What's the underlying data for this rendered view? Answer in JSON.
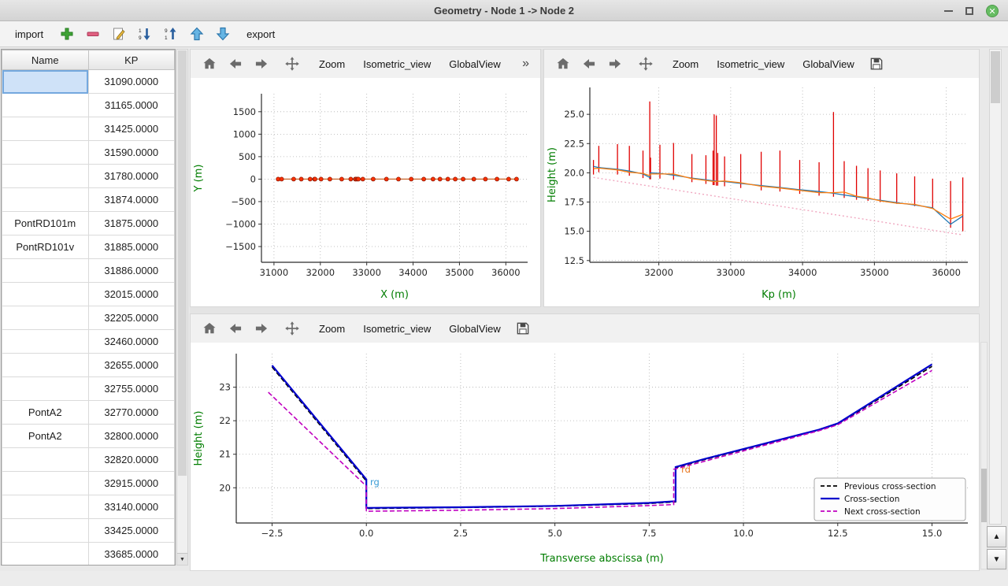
{
  "window": {
    "title": "Geometry - Node 1 -> Node 2"
  },
  "toolbar": {
    "import_label": "import",
    "export_label": "export",
    "icons": [
      "add",
      "remove",
      "edit",
      "sort-descending",
      "sort-ascending",
      "move-up",
      "move-down"
    ]
  },
  "table": {
    "headers": [
      "Name",
      "KP"
    ],
    "selected_row": 0,
    "selected_column": "name",
    "rows": [
      {
        "name": "",
        "kp": "31090.0000"
      },
      {
        "name": "",
        "kp": "31165.0000"
      },
      {
        "name": "",
        "kp": "31425.0000"
      },
      {
        "name": "",
        "kp": "31590.0000"
      },
      {
        "name": "",
        "kp": "31780.0000"
      },
      {
        "name": "",
        "kp": "31874.0000"
      },
      {
        "name": "PontRD101m",
        "kp": "31875.0000"
      },
      {
        "name": "PontRD101v",
        "kp": "31885.0000"
      },
      {
        "name": "",
        "kp": "31886.0000"
      },
      {
        "name": "",
        "kp": "32015.0000"
      },
      {
        "name": "",
        "kp": "32205.0000"
      },
      {
        "name": "",
        "kp": "32460.0000"
      },
      {
        "name": "",
        "kp": "32655.0000"
      },
      {
        "name": "",
        "kp": "32755.0000"
      },
      {
        "name": "PontA2",
        "kp": "32770.0000"
      },
      {
        "name": "PontA2",
        "kp": "32800.0000"
      },
      {
        "name": "",
        "kp": "32820.0000"
      },
      {
        "name": "",
        "kp": "32915.0000"
      },
      {
        "name": "",
        "kp": "33140.0000"
      },
      {
        "name": "",
        "kp": "33425.0000"
      },
      {
        "name": "",
        "kp": "33685.0000"
      }
    ]
  },
  "plot_toolbar": {
    "zoom": "Zoom",
    "isometric": "Isometric_view",
    "globalview": "GlobalView",
    "more": "»"
  },
  "scrollbars": {
    "up": "▲",
    "down": "▼"
  },
  "colors": {
    "axis_label_green": "#007d00",
    "selection_blue": "#cfe2f8",
    "marker_red": "#e00000",
    "bank_blue": "#1f77b4",
    "bank_orange": "#ff7f0e",
    "cross_section_blue": "#0000cc",
    "next_section_magenta": "#c000c0"
  },
  "chart_data": [
    {
      "id": "plan",
      "type": "scatter",
      "xlabel": "X (m)",
      "ylabel": "Y (m)",
      "xlim": [
        30730,
        36470
      ],
      "ylim": [
        -1850,
        1900
      ],
      "xticks": [
        31000,
        32000,
        33000,
        34000,
        35000,
        36000
      ],
      "xtick_labels": [
        "31000",
        "32000",
        "33000",
        "34000",
        "35000",
        "36000"
      ],
      "yticks": [
        -1500,
        -1000,
        -500,
        0,
        500,
        1000,
        1500
      ],
      "ytick_labels": [
        "−1500",
        "−1000",
        "−500",
        "0",
        "500",
        "1000",
        "1500"
      ],
      "margins": {
        "l": 90,
        "r": 16,
        "t": 20,
        "b": 56
      },
      "grid": true,
      "series": [
        {
          "name": "channel-axis",
          "type": "line",
          "color": "#c86428",
          "width": 1.2,
          "x": [
            31090,
            36230
          ],
          "y": [
            0,
            0
          ]
        },
        {
          "name": "profile-points",
          "type": "scatter",
          "color": "#ff2f00",
          "edge": "#8f1a00",
          "r": 2.5,
          "x": [
            31090,
            31165,
            31425,
            31590,
            31780,
            31874,
            31885,
            32015,
            32205,
            32460,
            32655,
            32755,
            32770,
            32800,
            32820,
            32915,
            33140,
            33425,
            33685,
            33960,
            34230,
            34430,
            34580,
            34750,
            34910,
            35080,
            35310,
            35560,
            35810,
            36060,
            36230
          ],
          "y": [
            0,
            0,
            0,
            0,
            0,
            0,
            0,
            0,
            0,
            0,
            0,
            0,
            0,
            0,
            0,
            0,
            0,
            0,
            0,
            0,
            0,
            0,
            0,
            0,
            0,
            0,
            0,
            0,
            0,
            0,
            0
          ]
        }
      ]
    },
    {
      "id": "profile",
      "type": "line",
      "xlabel": "Kp (m)",
      "ylabel": "Height (m)",
      "xlim": [
        31040,
        36300
      ],
      "ylim": [
        12.35,
        27.3
      ],
      "xticks": [
        32000,
        33000,
        34000,
        35000,
        36000
      ],
      "xtick_labels": [
        "32000",
        "33000",
        "34000",
        "35000",
        "36000"
      ],
      "yticks": [
        12.5,
        15.0,
        17.5,
        20.0,
        22.5,
        25.0
      ],
      "ytick_labels": [
        "12.5",
        "15.0",
        "17.5",
        "20.0",
        "22.5",
        "25.0"
      ],
      "margins": {
        "l": 58,
        "r": 14,
        "t": 12,
        "b": 56
      },
      "grid": true,
      "series": [
        {
          "name": "bed-reference",
          "type": "line",
          "color": "#f0a8c0",
          "width": 1.4,
          "dash": [
            2,
            3
          ],
          "x": [
            31090,
            32000,
            33000,
            34000,
            35000,
            36060,
            36230
          ],
          "y": [
            19.6,
            18.75,
            17.8,
            16.85,
            15.9,
            14.85,
            14.7
          ]
        },
        {
          "name": "cross-section-markers",
          "type": "vlines",
          "color": "#e00000",
          "width": 1.3,
          "segments": [
            [
              31090,
              19.85,
              21.1
            ],
            [
              31165,
              20.05,
              22.3
            ],
            [
              31425,
              19.85,
              22.45
            ],
            [
              31590,
              19.75,
              22.3
            ],
            [
              31780,
              19.55,
              21.9
            ],
            [
              31874,
              19.45,
              26.1
            ],
            [
              31885,
              19.45,
              21.3
            ],
            [
              32015,
              19.5,
              22.4
            ],
            [
              32205,
              19.4,
              22.55
            ],
            [
              32460,
              19.2,
              21.6
            ],
            [
              32655,
              19.05,
              21.5
            ],
            [
              32755,
              18.95,
              21.9
            ],
            [
              32770,
              18.95,
              25.0
            ],
            [
              32800,
              18.9,
              24.9
            ],
            [
              32820,
              18.9,
              21.7
            ],
            [
              32915,
              18.85,
              21.4
            ],
            [
              33140,
              18.7,
              21.6
            ],
            [
              33425,
              18.5,
              21.8
            ],
            [
              33685,
              18.4,
              21.9
            ],
            [
              33960,
              18.2,
              21.1
            ],
            [
              34230,
              18.05,
              20.9
            ],
            [
              34430,
              17.95,
              25.2
            ],
            [
              34580,
              17.85,
              21.0
            ],
            [
              34750,
              17.7,
              20.6
            ],
            [
              34910,
              17.6,
              20.4
            ],
            [
              35080,
              17.5,
              20.2
            ],
            [
              35310,
              17.35,
              19.95
            ],
            [
              35560,
              17.15,
              19.7
            ],
            [
              35810,
              16.95,
              19.5
            ],
            [
              36060,
              15.3,
              19.3
            ],
            [
              36230,
              15.0,
              19.6
            ]
          ]
        },
        {
          "name": "left-bank",
          "type": "line",
          "color": "#1f77b4",
          "width": 1.3,
          "x": [
            31090,
            31165,
            31425,
            31590,
            31780,
            31874,
            31885,
            32015,
            32205,
            32460,
            32655,
            32770,
            32915,
            33140,
            33425,
            33685,
            33960,
            34230,
            34430,
            34580,
            34750,
            34910,
            35080,
            35310,
            35560,
            35810,
            36060,
            36230
          ],
          "y": [
            20.55,
            20.45,
            20.3,
            20.15,
            19.9,
            19.6,
            20.0,
            19.95,
            19.8,
            19.55,
            19.4,
            19.3,
            19.25,
            19.1,
            18.9,
            18.75,
            18.55,
            18.4,
            18.25,
            18.1,
            17.95,
            17.8,
            17.65,
            17.45,
            17.25,
            17.0,
            15.6,
            16.3
          ]
        },
        {
          "name": "right-bank",
          "type": "line",
          "color": "#ff7f0e",
          "width": 1.3,
          "x": [
            31090,
            31165,
            31425,
            31590,
            31780,
            31874,
            31885,
            32015,
            32205,
            32460,
            32655,
            32770,
            32915,
            33140,
            33425,
            33685,
            33960,
            34230,
            34430,
            34580,
            34750,
            34910,
            35080,
            35310,
            35560,
            35810,
            36060,
            36230
          ],
          "y": [
            20.35,
            20.4,
            20.25,
            20.05,
            19.95,
            19.75,
            19.9,
            19.9,
            19.9,
            19.5,
            19.35,
            19.25,
            19.3,
            19.15,
            18.85,
            18.7,
            18.5,
            18.3,
            18.3,
            18.35,
            18.0,
            17.85,
            17.6,
            17.4,
            17.3,
            16.95,
            16.05,
            16.45
          ]
        }
      ]
    },
    {
      "id": "cross",
      "type": "line",
      "xlabel": "Transverse abscissa (m)",
      "ylabel": "Height (m)",
      "xlim": [
        -3.45,
        15.95
      ],
      "ylim": [
        18.95,
        24.0
      ],
      "xticks": [
        -2.5,
        0,
        2.5,
        5,
        7.5,
        10,
        12.5,
        15
      ],
      "xtick_labels": [
        "−2.5",
        "0.0",
        "2.5",
        "5.0",
        "7.5",
        "10.0",
        "12.5",
        "15.0"
      ],
      "yticks": [
        20,
        21,
        22,
        23
      ],
      "ytick_labels": [
        "20",
        "21",
        "22",
        "23"
      ],
      "margins": {
        "l": 58,
        "r": 14,
        "t": 14,
        "b": 60
      },
      "grid": true,
      "series": [
        {
          "name": "previous-cross-section",
          "type": "line",
          "color": "#000000",
          "width": 1.6,
          "dash": [
            6,
            3
          ],
          "x": [
            -2.5,
            0,
            0,
            2.5,
            5,
            7.5,
            8.2,
            8.2,
            9,
            12,
            12.5,
            15
          ],
          "y": [
            23.6,
            20.2,
            19.38,
            19.41,
            19.45,
            19.53,
            19.58,
            20.6,
            20.85,
            21.72,
            21.9,
            23.62
          ]
        },
        {
          "name": "cross-section",
          "type": "line",
          "color": "#0000cc",
          "width": 2.2,
          "x": [
            -2.5,
            0,
            0,
            2.5,
            5,
            7.5,
            8.2,
            8.2,
            9,
            12,
            12.5,
            15
          ],
          "y": [
            23.65,
            20.25,
            19.4,
            19.42,
            19.46,
            19.55,
            19.6,
            20.62,
            20.87,
            21.73,
            21.92,
            23.68
          ]
        },
        {
          "name": "next-cross-section",
          "type": "line",
          "color": "#c000c0",
          "width": 1.6,
          "dash": [
            6,
            3
          ],
          "x": [
            -2.6,
            0,
            0,
            2.5,
            5,
            7.5,
            8.15,
            8.15,
            9,
            12,
            12.5,
            15
          ],
          "y": [
            22.85,
            20.05,
            19.3,
            19.33,
            19.38,
            19.47,
            19.5,
            20.55,
            20.8,
            21.7,
            21.88,
            23.5
          ]
        }
      ],
      "annotations": [
        {
          "text": "rg",
          "x": 0.1,
          "y": 20.08,
          "color": "#3a9bd5"
        },
        {
          "text": "rd",
          "x": 8.35,
          "y": 20.45,
          "color": "#e8731a"
        }
      ],
      "legend": {
        "position": "lower right",
        "entries": [
          {
            "label": "Previous cross-section",
            "color": "#000000",
            "dash": true
          },
          {
            "label": "Cross-section",
            "color": "#0000cc",
            "dash": false
          },
          {
            "label": "Next cross-section",
            "color": "#c000c0",
            "dash": true
          }
        ]
      }
    }
  ]
}
